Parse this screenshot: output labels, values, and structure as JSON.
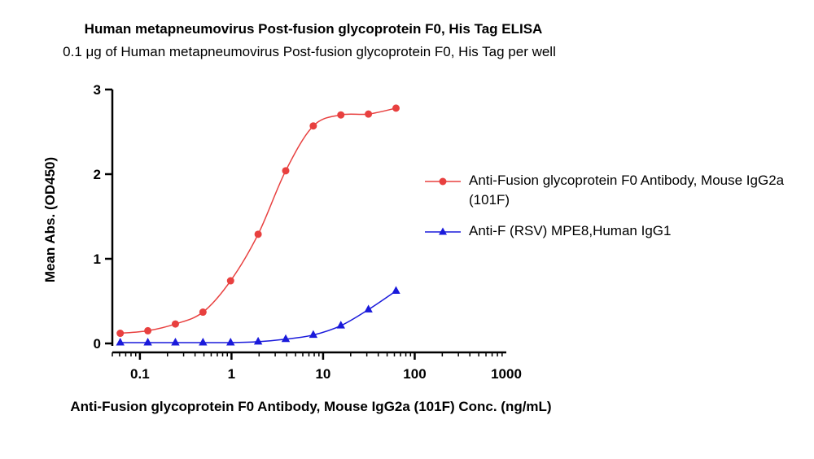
{
  "chart_data": {
    "type": "line",
    "title": "Human metapneumovirus Post-fusion glycoprotein F0, His Tag ELISA",
    "subtitle": "0.1 μg of Human metapneumovirus Post-fusion glycoprotein F0, His Tag per well",
    "xlabel": "Anti-Fusion glycoprotein F0 Antibody, Mouse IgG2a (101F) Conc. (ng/mL)",
    "ylabel": "Mean Abs. (OD450)",
    "xscale": "log",
    "xlim": [
      0.05,
      1000
    ],
    "ylim": [
      0,
      3
    ],
    "xticks": [
      "0.1",
      "1",
      "10",
      "100",
      "1000"
    ],
    "yticks": [
      "0",
      "1",
      "2",
      "3"
    ],
    "legend_position": "right",
    "series": [
      {
        "name": "Anti-Fusion glycoprotein F0 Antibody, Mouse IgG2a (101F)",
        "color": "#e8403f",
        "marker": "circle",
        "x": [
          0.061,
          0.122,
          0.244,
          0.488,
          0.977,
          1.953,
          3.906,
          7.813,
          15.625,
          31.25,
          62.5
        ],
        "y": [
          0.12,
          0.15,
          0.23,
          0.37,
          0.74,
          1.29,
          2.04,
          2.57,
          2.7,
          2.71,
          2.78
        ]
      },
      {
        "name": "Anti-F (RSV) MPE8,Human IgG1",
        "color": "#1a1adb",
        "marker": "triangle",
        "x": [
          0.061,
          0.122,
          0.244,
          0.488,
          0.977,
          1.953,
          3.906,
          7.813,
          15.625,
          31.25,
          62.5
        ],
        "y": [
          0.01,
          0.01,
          0.01,
          0.01,
          0.01,
          0.02,
          0.05,
          0.1,
          0.21,
          0.4,
          0.62
        ]
      }
    ]
  }
}
